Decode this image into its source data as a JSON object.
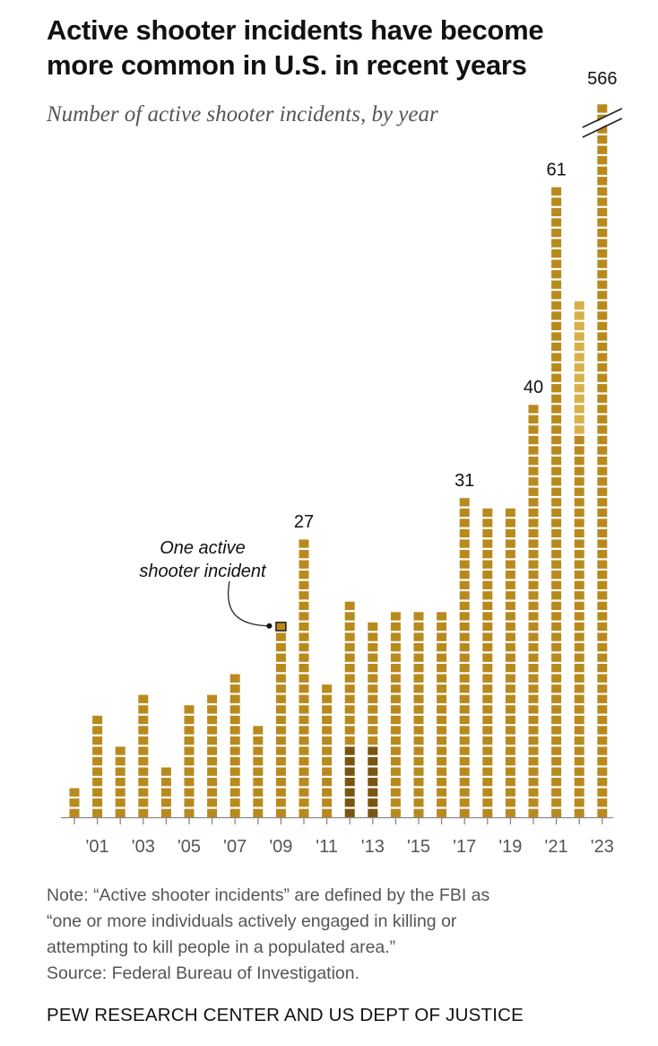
{
  "title_lines": [
    "Active shooter incidents have become",
    "more common in U.S. in recent years"
  ],
  "subtitle": "Number of active shooter incidents, by year",
  "chart_data": {
    "type": "bar",
    "title": "Active shooter incidents have become more common in U.S. in recent years",
    "subtitle": "Number of active shooter incidents, by year",
    "categories": [
      "2000",
      "2001",
      "2002",
      "2003",
      "2004",
      "2005",
      "2006",
      "2007",
      "2008",
      "2009",
      "2010",
      "2011",
      "2012",
      "2013",
      "2014",
      "2015",
      "2016",
      "2017",
      "2018",
      "2019",
      "2020",
      "2021",
      "2022",
      "2023"
    ],
    "values": [
      3,
      10,
      7,
      12,
      5,
      11,
      12,
      14,
      9,
      19,
      27,
      13,
      21,
      19,
      20,
      20,
      20,
      31,
      30,
      30,
      40,
      61,
      50,
      566
    ],
    "tick_labels": [
      "'01",
      "'03",
      "'05",
      "'07",
      "'09",
      "'11",
      "'13",
      "'15",
      "'17",
      "'19",
      "'21",
      "'23"
    ],
    "value_labels": [
      {
        "year": "2010",
        "text": "27"
      },
      {
        "year": "2017",
        "text": "31"
      },
      {
        "year": "2020",
        "text": "40"
      },
      {
        "year": "2021",
        "text": "61"
      },
      {
        "year": "2023",
        "text": "566"
      }
    ],
    "axis_break_year": "2023",
    "annotation": {
      "lines": [
        "One active",
        "shooter incident"
      ],
      "year": "2009"
    },
    "xlabel": "",
    "ylabel": "",
    "grid": false,
    "colors": {
      "bar": "#b88a1e",
      "bar_light": "#d8b04a",
      "bar_dark": "#7a5510",
      "axis": "#888888"
    }
  },
  "note_lines": [
    "Note: “Active shooter incidents” are defined by the FBI as",
    "“one or more individuals actively engaged in killing or",
    "attempting to kill people in a populated area.”",
    "Source: Federal Bureau of Investigation."
  ],
  "footer": "PEW RESEARCH CENTER AND US DEPT OF JUSTICE"
}
